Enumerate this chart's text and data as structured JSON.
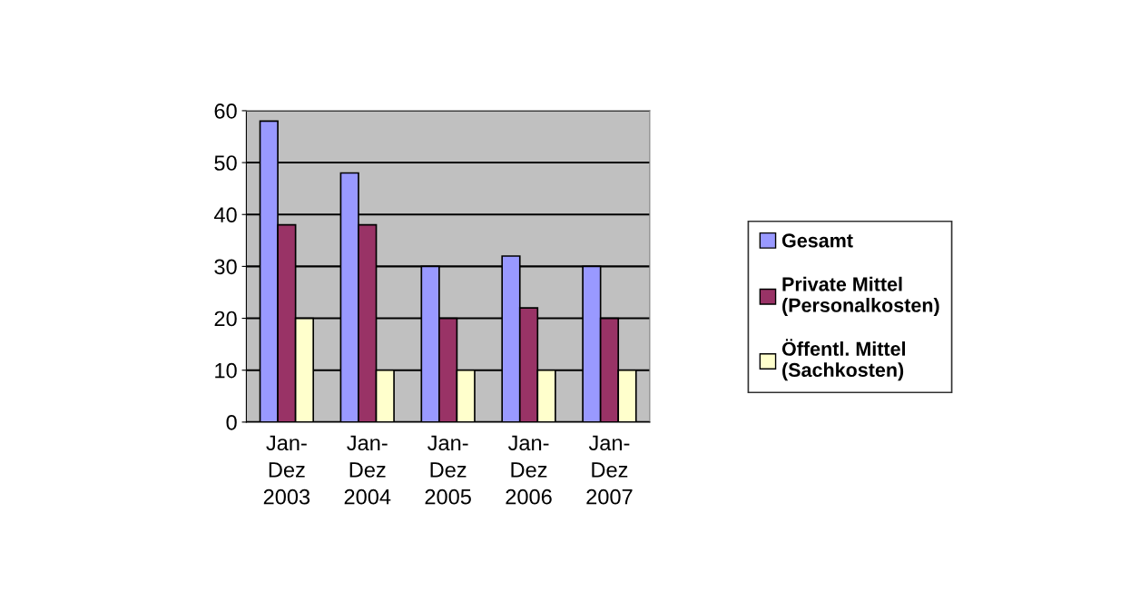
{
  "chart_data": {
    "type": "bar",
    "categories": [
      "Jan-\nDez\n2003",
      "Jan-\nDez\n2004",
      "Jan-\nDez\n2005",
      "Jan-\nDez\n2006",
      "Jan-\nDez\n2007"
    ],
    "series": [
      {
        "name": "Gesamt",
        "color": "#9999ff",
        "values": [
          58,
          48,
          30,
          32,
          30
        ]
      },
      {
        "name": "Private Mittel\n(Personalkosten)",
        "color": "#993366",
        "values": [
          38,
          38,
          20,
          22,
          20
        ]
      },
      {
        "name": "Öffentl. Mittel\n(Sachkosten)",
        "color": "#ffffcc",
        "values": [
          20,
          10,
          10,
          10,
          10
        ]
      }
    ],
    "ylim": [
      0,
      60
    ],
    "yticks": [
      0,
      10,
      20,
      30,
      40,
      50,
      60
    ],
    "grid": "y",
    "legend": "right"
  }
}
